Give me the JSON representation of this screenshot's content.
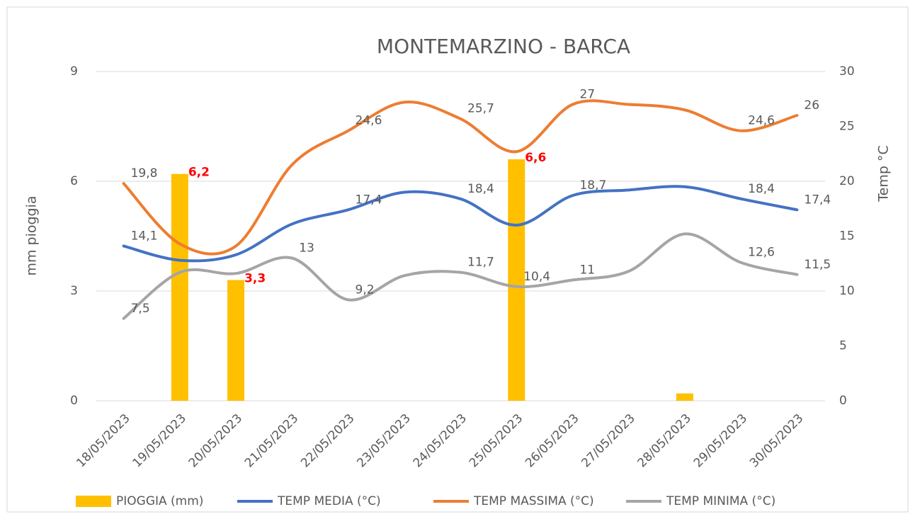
{
  "chart_data": {
    "type": "combo",
    "title": "MONTEMARZINO - BARCA",
    "y_label": "mm pioggia",
    "y2_label": "Temp °C",
    "categories": [
      "18/05/2023",
      "19/05/2023",
      "20/05/2023",
      "21/05/2023",
      "22/05/2023",
      "23/05/2023",
      "24/05/2023",
      "25/05/2023",
      "26/05/2023",
      "27/05/2023",
      "28/05/2023",
      "29/05/2023",
      "30/05/2023"
    ],
    "ylim": [
      0,
      9
    ],
    "yticks": [
      0,
      3,
      6,
      9
    ],
    "y2lim": [
      0,
      30
    ],
    "y2ticks": [
      0,
      5,
      10,
      15,
      20,
      25,
      30
    ],
    "grid": true,
    "legend": "bottom",
    "series": [
      {
        "name": "PIOGGIA (mm)",
        "type": "bar",
        "axis": "y",
        "color": "#FFC000",
        "values": [
          0,
          6.2,
          3.3,
          0,
          0,
          0,
          0,
          6.6,
          0,
          0,
          0.2,
          0,
          0
        ],
        "value_labels": [
          null,
          "6,2",
          "3,3",
          null,
          null,
          null,
          null,
          "6,6",
          null,
          null,
          null,
          null,
          null
        ]
      },
      {
        "name": "TEMP MEDIA (°C)",
        "type": "line",
        "axis": "y2",
        "color": "#4472C4",
        "values": [
          14.1,
          12.8,
          13.3,
          16.1,
          17.4,
          19.0,
          18.4,
          16.0,
          18.7,
          19.2,
          19.5,
          18.4,
          17.4
        ],
        "value_labels": [
          "14,1",
          null,
          null,
          null,
          "17,4",
          null,
          "18,4",
          null,
          "18,7",
          null,
          null,
          "18,4",
          "17,4"
        ]
      },
      {
        "name": "TEMP MASSIMA (°C)",
        "type": "line",
        "axis": "y2",
        "color": "#ED7D31",
        "values": [
          19.8,
          14.3,
          14.1,
          21.5,
          24.6,
          27.2,
          25.7,
          22.7,
          27,
          27.0,
          26.5,
          24.6,
          26
        ],
        "value_labels": [
          "19,8",
          null,
          null,
          null,
          "24,6",
          null,
          "25,7",
          null,
          "27",
          null,
          null,
          "24,6",
          "26"
        ]
      },
      {
        "name": "TEMP MINIMA (°C)",
        "type": "line",
        "axis": "y2",
        "color": "#A5A5A5",
        "values": [
          7.5,
          11.7,
          11.6,
          13,
          9.2,
          11.4,
          11.7,
          10.4,
          11,
          11.8,
          15.2,
          12.6,
          11.5
        ],
        "value_labels": [
          "7,5",
          null,
          null,
          "13",
          "9,2",
          null,
          "11,7",
          "10,4",
          "11",
          null,
          null,
          "12,6",
          "11,5"
        ]
      }
    ]
  }
}
